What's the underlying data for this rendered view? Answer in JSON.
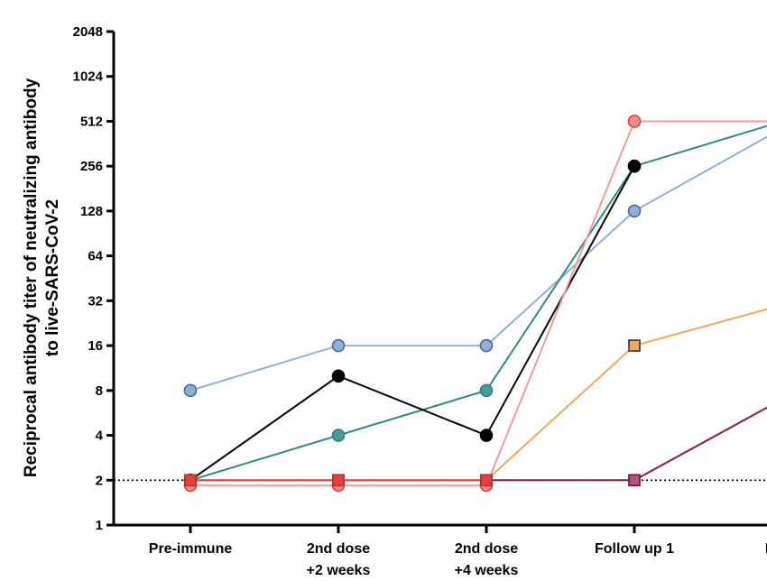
{
  "chart_data": {
    "type": "line",
    "title": "",
    "ylabel": [
      "Reciprocal antibody titer  of neutralizing antibody",
      "to live-SARS-CoV-2"
    ],
    "xlabel": "",
    "yscale": "log2",
    "ylim": [
      1,
      2048
    ],
    "yticks": [
      "1",
      "2",
      "4",
      "8",
      "16",
      "32",
      "64",
      "128",
      "256",
      "512",
      "1024",
      "2048"
    ],
    "categories": [
      [
        "Pre-immune",
        ""
      ],
      [
        "2nd dose",
        "+2 weeks"
      ],
      [
        "2nd dose",
        "+4 weeks"
      ],
      [
        "Follow up 1",
        ""
      ],
      [
        "Follo",
        ""
      ]
    ],
    "detection_limit": 2,
    "series": [
      {
        "color": "#8fb0d8",
        "marker": "circle",
        "fill": "#8fb0d8",
        "values": [
          8,
          16,
          16,
          128,
          460
        ]
      },
      {
        "color": "#2e8b80",
        "marker": "circle",
        "fill": "#3aa297",
        "values": [
          2,
          4,
          8,
          256,
          512
        ]
      },
      {
        "color": "#000000",
        "marker": "circle",
        "fill": "#000000",
        "values": [
          2,
          10,
          4,
          256,
          null
        ]
      },
      {
        "color": "#f09d9a",
        "marker": "circle",
        "fill": "#f08d89",
        "values": [
          1.85,
          1.85,
          1.85,
          512,
          512
        ]
      },
      {
        "color": "#f0a85b",
        "marker": "square",
        "fill": "#f0a85b",
        "values": [
          2,
          2,
          2,
          16,
          30
        ]
      },
      {
        "color": "#8c1a4b",
        "marker": "square",
        "fill": "#b94f83",
        "values": [
          null,
          null,
          2,
          2,
          7
        ]
      },
      {
        "color": "#e8403a",
        "marker": "square",
        "fill": "#e8403a",
        "values": [
          2,
          2,
          2,
          null,
          null
        ]
      }
    ]
  }
}
